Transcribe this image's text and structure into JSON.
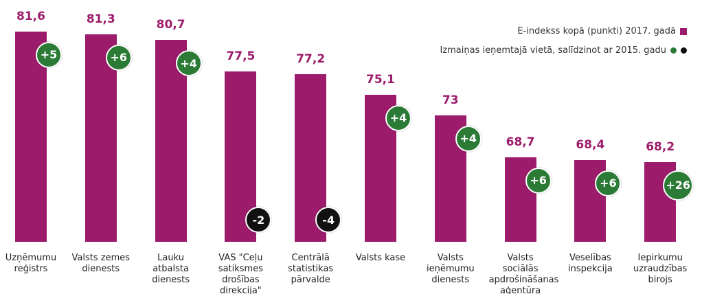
{
  "chart_data": {
    "type": "bar",
    "categories": [
      "Uzņēmumu reģistrs",
      "Valsts zemes dienests",
      "Lauku atbalsta dienests",
      "VAS \"Ceļu satiksmes drošības direkcija\"",
      "Centrālā statistikas pārvalde",
      "Valsts kase",
      "Valsts ieņēmumu dienests",
      "Valsts sociālās apdrošināšanas aģentūra",
      "Veselības inspekcija",
      "Iepirkumu uzraudzības birojs"
    ],
    "series": [
      {
        "name": "E-indekss kopā (punkti) 2017. gadā",
        "color": "#9c1c6b",
        "values": [
          81.6,
          81.3,
          80.7,
          77.5,
          77.2,
          75.1,
          73,
          68.7,
          68.4,
          68.2
        ],
        "value_labels": [
          "81,6",
          "81,3",
          "80,7",
          "77,5",
          "77,2",
          "75,1",
          "73",
          "68,7",
          "68,4",
          "68,2"
        ]
      },
      {
        "name": "Izmaiņas ieņemtajā vietā, salīdzinot ar 2015. gadu",
        "colors": [
          "#2b7a36",
          "#111111"
        ],
        "values": [
          5,
          6,
          4,
          -2,
          -4,
          4,
          4,
          6,
          6,
          26
        ],
        "value_labels": [
          "+5",
          "+6",
          "+4",
          "-2",
          "-4",
          "+4",
          "+4",
          "+6",
          "+6",
          "+26"
        ]
      }
    ],
    "ylim": [
      60,
      82
    ]
  }
}
